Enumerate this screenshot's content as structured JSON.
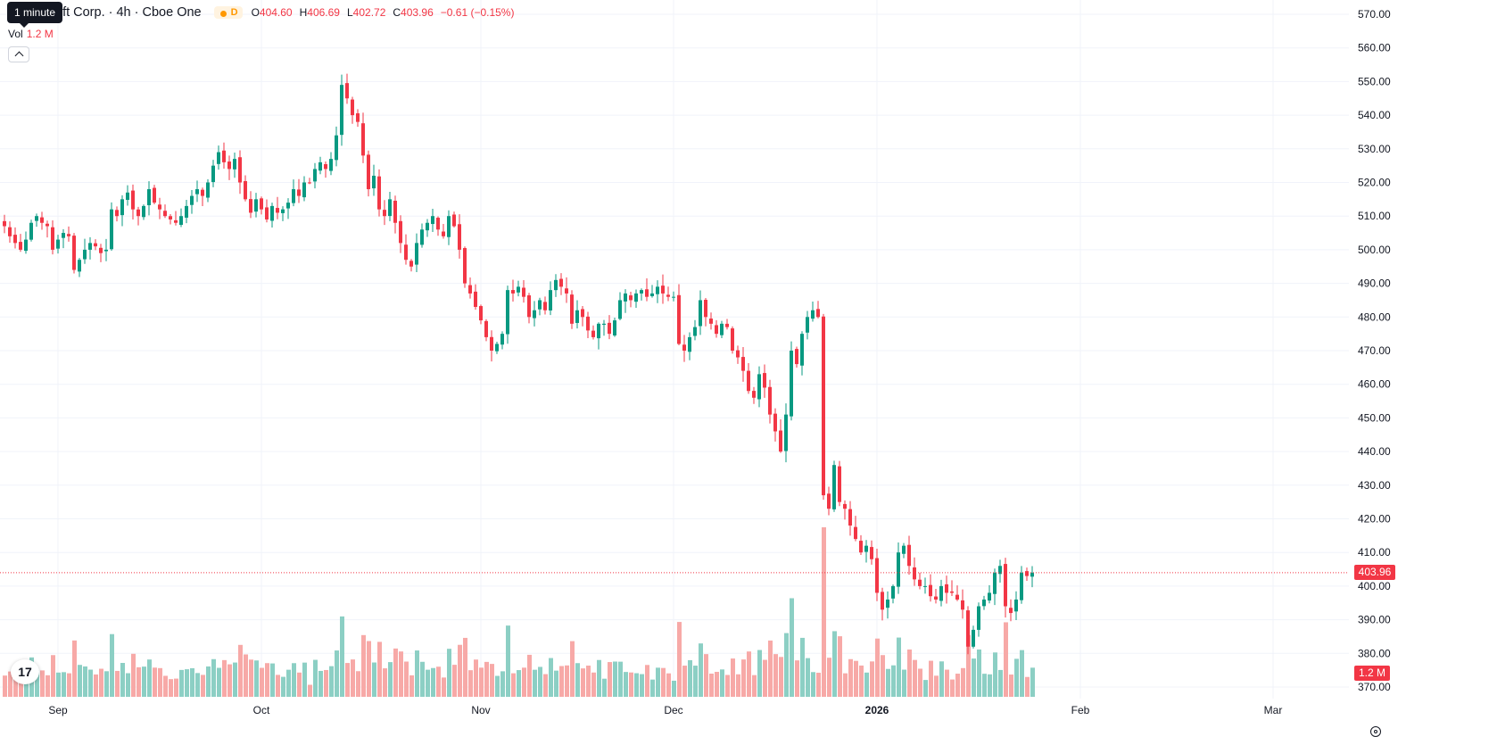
{
  "header": {
    "symbol_title": "oft Corp. · 4h · Cboe One",
    "session_badge": "D",
    "tooltip": "1 minute",
    "ohlc": [
      {
        "key": "O",
        "value": "404.60"
      },
      {
        "key": "H",
        "value": "406.69"
      },
      {
        "key": "L",
        "value": "402.72"
      },
      {
        "key": "C",
        "value": "403.96"
      },
      {
        "key": "",
        "value": "−0.61 (−0.15%)"
      }
    ]
  },
  "volume_legend": {
    "label": "Vol",
    "value": "1.2 M"
  },
  "last_price_label": "403.96",
  "last_volume_label": "1.2 M",
  "logo_text": "17",
  "colors": {
    "up": "#089981",
    "down": "#f23645",
    "up_volume": "#8ccfc4",
    "down_volume": "#f7a9a7",
    "grid": "#f0f3fa"
  },
  "icons": {
    "collapse": "chevron-up-icon",
    "settings": "settings-icon",
    "logo": "tradingview-logo-icon",
    "session": "sun-icon"
  },
  "chart_data": {
    "type": "candlestick",
    "ylim": [
      370,
      570
    ],
    "y_ticks": [
      "570.00",
      "560.00",
      "550.00",
      "540.00",
      "530.00",
      "520.00",
      "510.00",
      "500.00",
      "490.00",
      "480.00",
      "470.00",
      "460.00",
      "450.00",
      "440.00",
      "430.00",
      "420.00",
      "410.00",
      "400.00",
      "390.00",
      "380.00",
      "370.00"
    ],
    "y_tick_values": [
      570,
      560,
      550,
      540,
      530,
      520,
      510,
      500,
      490,
      480,
      470,
      460,
      450,
      440,
      430,
      420,
      410,
      400,
      390,
      380,
      370
    ],
    "x_ticks": [
      {
        "label": "Sep",
        "bar": 10,
        "bold": false
      },
      {
        "label": "Oct",
        "bar": 48,
        "bold": false
      },
      {
        "label": "Nov",
        "bar": 89,
        "bold": false
      },
      {
        "label": "Dec",
        "bar": 125,
        "bold": false
      },
      {
        "label": "2026",
        "bar": 163,
        "bold": true
      },
      {
        "label": "Feb",
        "bar": 201,
        "bold": false
      },
      {
        "label": "Mar",
        "bar": 237,
        "bold": false
      }
    ],
    "closes": [
      507,
      504,
      502,
      500,
      503,
      508,
      510,
      508,
      507,
      500,
      503,
      505,
      504,
      494,
      497,
      500,
      502,
      501,
      499,
      500,
      512,
      510,
      515,
      517,
      512,
      510,
      513,
      518,
      514,
      512,
      510,
      509,
      508,
      510,
      513,
      516,
      518,
      516,
      520,
      525,
      529,
      526,
      524,
      527,
      520,
      515,
      511,
      515,
      512,
      509,
      513,
      511,
      512,
      514,
      518,
      516,
      520,
      520,
      524,
      526,
      524,
      527,
      534,
      549,
      545,
      540,
      538,
      528,
      518,
      522,
      512,
      510,
      515,
      508,
      502,
      497,
      495,
      502,
      506,
      508,
      510,
      506,
      504,
      510,
      507,
      500,
      490,
      487,
      483,
      479,
      474,
      470,
      472,
      475,
      488,
      487,
      489,
      486,
      480,
      482,
      485,
      482,
      488,
      491,
      489,
      487,
      478,
      482,
      480,
      476,
      474,
      478,
      478,
      475,
      479,
      485,
      487,
      485,
      487,
      488,
      486,
      487,
      489,
      487,
      486,
      486,
      472,
      470,
      474,
      477,
      485,
      480,
      478,
      475,
      478,
      477,
      470,
      468,
      464,
      458,
      456,
      463,
      459,
      451,
      446,
      440,
      451,
      470,
      466,
      475,
      480,
      482,
      480,
      427,
      423,
      436,
      425,
      423,
      418,
      414,
      410,
      412,
      408,
      398,
      393,
      396,
      400,
      410,
      412,
      406,
      402,
      400,
      400,
      397,
      396,
      400,
      398,
      398,
      396,
      393,
      382,
      387,
      394,
      396,
      398,
      404,
      406,
      394,
      392,
      396,
      404,
      403,
      404
    ],
    "opens": [
      null
    ]
  }
}
